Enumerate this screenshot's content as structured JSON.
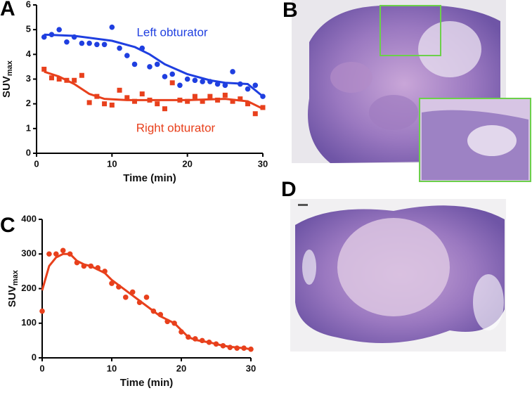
{
  "chart_data": [
    {
      "type": "scatter",
      "panel": "A",
      "xlabel": "Time (min)",
      "ylabel": "SUV",
      "ylabel_subscript": "max",
      "xlim": [
        0,
        30
      ],
      "ylim": [
        0,
        6
      ],
      "xticks": [
        0,
        10,
        20,
        30
      ],
      "yticks": [
        0,
        1,
        2,
        3,
        4,
        5,
        6
      ],
      "series": [
        {
          "name": "Left obturator",
          "color": "#1f3fe0",
          "marker": "circle",
          "x": [
            1,
            2,
            3,
            4,
            5,
            6,
            7,
            8,
            9,
            10,
            11,
            12,
            13,
            14,
            15,
            16,
            17,
            18,
            19,
            20,
            21,
            22,
            23,
            24,
            25,
            26,
            27,
            28,
            29,
            30
          ],
          "values": [
            4.7,
            4.8,
            5.0,
            4.5,
            4.7,
            4.45,
            4.45,
            4.4,
            4.4,
            5.1,
            4.25,
            3.95,
            3.6,
            4.25,
            3.5,
            3.6,
            3.1,
            3.2,
            2.75,
            3.0,
            2.95,
            2.9,
            2.9,
            2.8,
            2.75,
            3.3,
            2.8,
            2.6,
            2.75,
            2.3
          ],
          "fit": {
            "x": [
              1,
              5,
              10,
              13,
              15,
              17,
              20,
              23,
              25,
              28,
              30
            ],
            "values": [
              4.8,
              4.75,
              4.55,
              4.3,
              4.0,
              3.6,
              3.2,
              2.95,
              2.85,
              2.8,
              2.3
            ]
          }
        },
        {
          "name": "Right obturator",
          "color": "#e8401c",
          "marker": "square",
          "x": [
            1,
            2,
            3,
            4,
            5,
            6,
            7,
            8,
            9,
            10,
            11,
            12,
            13,
            14,
            15,
            16,
            17,
            18,
            19,
            20,
            21,
            22,
            23,
            24,
            25,
            26,
            27,
            28,
            29,
            30
          ],
          "values": [
            3.4,
            3.05,
            3.0,
            2.95,
            2.95,
            3.15,
            2.05,
            2.3,
            2.0,
            1.95,
            2.55,
            2.25,
            2.1,
            2.4,
            2.15,
            2.0,
            1.8,
            2.85,
            2.15,
            2.1,
            2.3,
            2.1,
            2.3,
            2.15,
            2.35,
            2.1,
            2.2,
            2.0,
            1.6,
            1.85
          ],
          "fit": {
            "x": [
              1,
              3,
              5,
              7,
              9,
              12,
              20,
              25,
              28,
              30
            ],
            "values": [
              3.3,
              3.1,
              2.8,
              2.4,
              2.2,
              2.15,
              2.15,
              2.2,
              2.1,
              1.8
            ]
          }
        }
      ]
    },
    {
      "type": "scatter",
      "panel": "C",
      "xlabel": "Time (min)",
      "ylabel": "SUV",
      "ylabel_subscript": "max",
      "xlim": [
        0,
        30
      ],
      "ylim": [
        0,
        400
      ],
      "xticks": [
        0,
        10,
        20,
        30
      ],
      "yticks": [
        0,
        100,
        200,
        300,
        400
      ],
      "series": [
        {
          "color": "#e8401c",
          "marker": "circle",
          "x": [
            0,
            1,
            2,
            3,
            4,
            5,
            6,
            7,
            8,
            9,
            10,
            11,
            12,
            13,
            14,
            15,
            16,
            17,
            18,
            19,
            20,
            21,
            22,
            23,
            24,
            25,
            26,
            27,
            28,
            29,
            30
          ],
          "values": [
            135,
            300,
            300,
            310,
            300,
            275,
            265,
            265,
            260,
            250,
            215,
            205,
            175,
            190,
            160,
            175,
            135,
            125,
            105,
            100,
            75,
            60,
            55,
            50,
            45,
            40,
            35,
            30,
            28,
            28,
            25
          ],
          "fit": {
            "x": [
              0,
              1,
              2,
              3,
              4,
              5,
              6,
              7,
              8,
              9,
              10,
              11,
              12,
              13,
              14,
              15,
              16,
              17,
              18,
              19,
              20,
              21,
              22,
              23,
              24,
              25,
              26,
              27,
              28,
              29,
              30
            ],
            "values": [
              195,
              265,
              290,
              300,
              300,
              280,
              270,
              265,
              255,
              245,
              225,
              210,
              195,
              180,
              165,
              150,
              135,
              120,
              110,
              100,
              80,
              60,
              52,
              48,
              45,
              40,
              35,
              32,
              30,
              28,
              25
            ]
          }
        }
      ]
    }
  ],
  "images": [
    {
      "panel": "B"
    },
    {
      "panel": "D"
    }
  ]
}
